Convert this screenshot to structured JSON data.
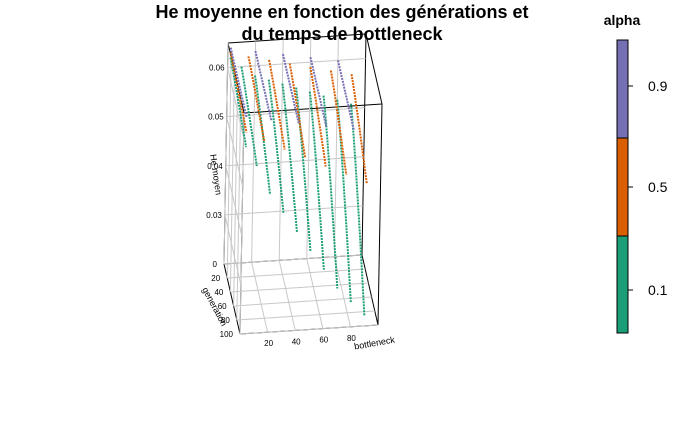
{
  "chart_data": {
    "type": "line",
    "title_lines": [
      "He moyenne en fonction des générations et",
      "du temps de bottleneck"
    ],
    "xlabel": "bottleneck",
    "ylabel": "generation",
    "zlabel": "He moyen",
    "x_ticks": [
      20,
      40,
      60,
      80
    ],
    "y_ticks": [
      0,
      20,
      40,
      60,
      80,
      100
    ],
    "z_ticks": [
      "0.03",
      "0.04",
      "0.05",
      "0.06"
    ],
    "xlim": [
      0,
      100
    ],
    "ylim": [
      0,
      100
    ],
    "zlim": [
      0.02,
      0.065
    ],
    "grid": true,
    "legend": {
      "title": "alpha",
      "placement": "right",
      "entries": [
        {
          "label": "0.9",
          "color": "#7570B3"
        },
        {
          "label": "0.5",
          "color": "#D95F02"
        },
        {
          "label": "0.1",
          "color": "#1B9E77"
        }
      ]
    },
    "series": [
      {
        "alpha": "0.1",
        "color": "#1B9E77",
        "bottleneck": 2,
        "he_start": 0.062,
        "he_end": 0.058
      },
      {
        "alpha": "0.1",
        "color": "#1B9E77",
        "bottleneck": 10,
        "he_start": 0.06,
        "he_end": 0.054
      },
      {
        "alpha": "0.1",
        "color": "#1B9E77",
        "bottleneck": 20,
        "he_start": 0.058,
        "he_end": 0.048
      },
      {
        "alpha": "0.1",
        "color": "#1B9E77",
        "bottleneck": 30,
        "he_start": 0.057,
        "he_end": 0.044
      },
      {
        "alpha": "0.1",
        "color": "#1B9E77",
        "bottleneck": 40,
        "he_start": 0.056,
        "he_end": 0.04
      },
      {
        "alpha": "0.1",
        "color": "#1B9E77",
        "bottleneck": 50,
        "he_start": 0.055,
        "he_end": 0.036
      },
      {
        "alpha": "0.1",
        "color": "#1B9E77",
        "bottleneck": 60,
        "he_start": 0.054,
        "he_end": 0.032
      },
      {
        "alpha": "0.1",
        "color": "#1B9E77",
        "bottleneck": 70,
        "he_start": 0.053,
        "he_end": 0.028
      },
      {
        "alpha": "0.1",
        "color": "#1B9E77",
        "bottleneck": 80,
        "he_start": 0.052,
        "he_end": 0.025
      },
      {
        "alpha": "0.1",
        "color": "#1B9E77",
        "bottleneck": 90,
        "he_start": 0.051,
        "he_end": 0.022
      },
      {
        "alpha": "0.5",
        "color": "#D95F02",
        "bottleneck": 2,
        "he_start": 0.063,
        "he_end": 0.061
      },
      {
        "alpha": "0.5",
        "color": "#D95F02",
        "bottleneck": 15,
        "he_start": 0.062,
        "he_end": 0.059
      },
      {
        "alpha": "0.5",
        "color": "#D95F02",
        "bottleneck": 30,
        "he_start": 0.061,
        "he_end": 0.057
      },
      {
        "alpha": "0.5",
        "color": "#D95F02",
        "bottleneck": 45,
        "he_start": 0.06,
        "he_end": 0.055
      },
      {
        "alpha": "0.5",
        "color": "#D95F02",
        "bottleneck": 60,
        "he_start": 0.059,
        "he_end": 0.053
      },
      {
        "alpha": "0.5",
        "color": "#D95F02",
        "bottleneck": 75,
        "he_start": 0.058,
        "he_end": 0.051
      },
      {
        "alpha": "0.5",
        "color": "#D95F02",
        "bottleneck": 90,
        "he_start": 0.057,
        "he_end": 0.049
      },
      {
        "alpha": "0.9",
        "color": "#7570B3",
        "bottleneck": 2,
        "he_start": 0.064,
        "he_end": 0.064
      },
      {
        "alpha": "0.9",
        "color": "#7570B3",
        "bottleneck": 20,
        "he_start": 0.063,
        "he_end": 0.063
      },
      {
        "alpha": "0.9",
        "color": "#7570B3",
        "bottleneck": 40,
        "he_start": 0.062,
        "he_end": 0.062
      },
      {
        "alpha": "0.9",
        "color": "#7570B3",
        "bottleneck": 60,
        "he_start": 0.061,
        "he_end": 0.061
      },
      {
        "alpha": "0.9",
        "color": "#7570B3",
        "bottleneck": 80,
        "he_start": 0.06,
        "he_end": 0.06
      }
    ]
  }
}
